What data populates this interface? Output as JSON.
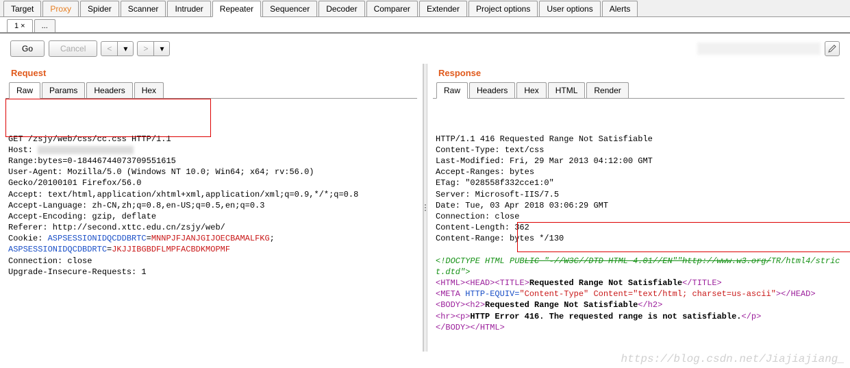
{
  "mainTabs": [
    {
      "label": "Target",
      "active": false
    },
    {
      "label": "Proxy",
      "active": false,
      "orange": true
    },
    {
      "label": "Spider",
      "active": false
    },
    {
      "label": "Scanner",
      "active": false
    },
    {
      "label": "Intruder",
      "active": false
    },
    {
      "label": "Repeater",
      "active": true
    },
    {
      "label": "Sequencer",
      "active": false
    },
    {
      "label": "Decoder",
      "active": false
    },
    {
      "label": "Comparer",
      "active": false
    },
    {
      "label": "Extender",
      "active": false
    },
    {
      "label": "Project options",
      "active": false
    },
    {
      "label": "User options",
      "active": false
    },
    {
      "label": "Alerts",
      "active": false
    }
  ],
  "subTabs": [
    {
      "label": "1 ×",
      "active": true
    },
    {
      "label": "...",
      "active": false
    }
  ],
  "toolbar": {
    "go": "Go",
    "cancel": "Cancel",
    "prev": "<",
    "next": ">",
    "dropdown": "▾"
  },
  "request": {
    "title": "Request",
    "tabs": [
      {
        "label": "Raw",
        "active": true
      },
      {
        "label": "Params",
        "active": false
      },
      {
        "label": "Headers",
        "active": false
      },
      {
        "label": "Hex",
        "active": false
      }
    ],
    "lines": [
      {
        "t": "plain",
        "v": "GET /zsjy/web/css/cc.css HTTP/1.1"
      },
      {
        "t": "host",
        "v": "Host:"
      },
      {
        "t": "plain",
        "v": "Range:bytes=0-18446744073709551615"
      },
      {
        "t": "plain",
        "v": "User-Agent: Mozilla/5.0 (Windows NT 10.0; Win64; x64; rv:56.0)"
      },
      {
        "t": "plain",
        "v": "Gecko/20100101 Firefox/56.0"
      },
      {
        "t": "plain",
        "v": "Accept: text/html,application/xhtml+xml,application/xml;q=0.9,*/*;q=0.8"
      },
      {
        "t": "plain",
        "v": "Accept-Language: zh-CN,zh;q=0.8,en-US;q=0.5,en;q=0.3"
      },
      {
        "t": "plain",
        "v": "Accept-Encoding: gzip, deflate"
      },
      {
        "t": "plain",
        "v": "Referer: http://second.xttc.edu.cn/zsjy/web/"
      },
      {
        "t": "cookie",
        "k": "Cookie: ",
        "b1": "ASPSESSIONIDQCDDBRTC",
        "e": "=",
        "r1": "MNNPJFJANJGIJOECBAMALFKG",
        "sc": ";"
      },
      {
        "t": "cookie2",
        "b1": "ASPSESSIONIDQCDBDRTC",
        "e": "=",
        "r1": "JKJJIBGBDFLMPFACBDKMOPMF"
      },
      {
        "t": "plain",
        "v": "Connection: close"
      },
      {
        "t": "plain",
        "v": "Upgrade-Insecure-Requests: 1"
      }
    ]
  },
  "response": {
    "title": "Response",
    "tabs": [
      {
        "label": "Raw",
        "active": true
      },
      {
        "label": "Headers",
        "active": false
      },
      {
        "label": "Hex",
        "active": false
      },
      {
        "label": "HTML",
        "active": false
      },
      {
        "label": "Render",
        "active": false
      }
    ],
    "headers": [
      "HTTP/1.1 416 Requested Range Not Satisfiable",
      "Content-Type: text/css",
      "Last-Modified: Fri, 29 Mar 2013 04:12:00 GMT",
      "Accept-Ranges: bytes",
      "ETag: \"028558f332cce1:0\"",
      "Server: Microsoft-IIS/7.5",
      "Date: Tue, 03 Apr 2018 03:06:29 GMT",
      "Connection: close",
      "Content-Length: 362",
      "Content-Range: bytes */130"
    ],
    "doctype": "<!DOCTYPE HTML PUBLIC \"-//W3C//DTD HTML 4.01//EN\"\"http://www.w3.org/TR/html4/strict.dtd\">",
    "htmlLines": [
      {
        "tags": [
          "<HTML>",
          "<HEAD>",
          "<TITLE>"
        ],
        "text": "Requested Range Not Satisfiable",
        "close": "</TITLE>"
      },
      {
        "meta": true,
        "open": "<META",
        "attr": " HTTP-EQUIV=",
        "val": "\"Content-Type\" Content=\"text/html; charset=us-ascii\"",
        "close": "></HEAD>"
      },
      {
        "tags": [
          "<BODY>",
          "<h2>"
        ],
        "text": "Requested Range Not Satisfiable",
        "close": "</h2>"
      },
      {
        "tags": [
          "<hr>",
          "<p>"
        ],
        "text": "HTTP Error 416. The requested range is not satisfiable.",
        "close": "</p>"
      },
      {
        "tags": [
          "</BODY>",
          "</HTML>"
        ],
        "text": "",
        "close": ""
      }
    ]
  },
  "watermark": "https://blog.csdn.net/Jiajiajiang_"
}
